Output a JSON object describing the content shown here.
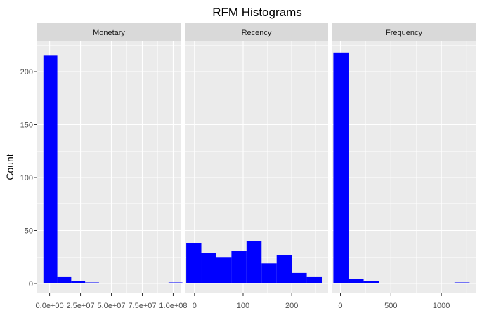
{
  "chart_data": {
    "type": "bar",
    "title": "RFM Histograms",
    "ylabel": "Count",
    "ylim": [
      0,
      225
    ],
    "y_ticks": [
      0,
      50,
      100,
      150,
      200
    ],
    "y_tick_labels": [
      "0",
      "50",
      "100",
      "150",
      "200"
    ],
    "grid": true,
    "legend": "none",
    "bar_color": "#0000ff",
    "panel_bg": "#ebebeb",
    "strip_bg": "#d9d9d9",
    "panels": [
      {
        "name": "Monetary",
        "xlim": [
          -10000000,
          106000000
        ],
        "x_ticks": [
          0,
          25000000,
          50000000,
          75000000,
          100000000
        ],
        "x_tick_labels": [
          "0.0e+00",
          "2.5e+07",
          "5.0e+07",
          "7.5e+07",
          "1.0e+08"
        ],
        "bins": [
          {
            "from": -5000000,
            "to": 6250000,
            "count": 215
          },
          {
            "from": 6250000,
            "to": 17500000,
            "count": 6
          },
          {
            "from": 17500000,
            "to": 28750000,
            "count": 2
          },
          {
            "from": 28750000,
            "to": 40000000,
            "count": 1
          },
          {
            "from": 40000000,
            "to": 51250000,
            "count": 0
          },
          {
            "from": 51250000,
            "to": 62500000,
            "count": 0
          },
          {
            "from": 62500000,
            "to": 73750000,
            "count": 0
          },
          {
            "from": 73750000,
            "to": 85000000,
            "count": 0
          },
          {
            "from": 85000000,
            "to": 96250000,
            "count": 0
          },
          {
            "from": 96250000,
            "to": 107500000,
            "count": 1
          }
        ]
      },
      {
        "name": "Recency",
        "xlim": [
          -20,
          275
        ],
        "x_ticks": [
          0,
          100,
          200
        ],
        "x_tick_labels": [
          "0",
          "100",
          "200"
        ],
        "bins": [
          {
            "from": -17,
            "to": 14,
            "count": 38
          },
          {
            "from": 14,
            "to": 45,
            "count": 29
          },
          {
            "from": 45,
            "to": 76,
            "count": 25
          },
          {
            "from": 76,
            "to": 107,
            "count": 31
          },
          {
            "from": 107,
            "to": 138,
            "count": 40
          },
          {
            "from": 138,
            "to": 169,
            "count": 19
          },
          {
            "from": 169,
            "to": 200,
            "count": 27
          },
          {
            "from": 200,
            "to": 231,
            "count": 10
          },
          {
            "from": 231,
            "to": 262,
            "count": 6
          }
        ]
      },
      {
        "name": "Frequency",
        "xlim": [
          -80,
          1340
        ],
        "x_ticks": [
          0,
          500,
          1000
        ],
        "x_tick_labels": [
          "0",
          "500",
          "1000"
        ],
        "bins": [
          {
            "from": -70,
            "to": 80,
            "count": 218
          },
          {
            "from": 80,
            "to": 230,
            "count": 4
          },
          {
            "from": 230,
            "to": 380,
            "count": 2
          },
          {
            "from": 380,
            "to": 530,
            "count": 0
          },
          {
            "from": 530,
            "to": 680,
            "count": 0
          },
          {
            "from": 680,
            "to": 830,
            "count": 0
          },
          {
            "from": 830,
            "to": 980,
            "count": 0
          },
          {
            "from": 980,
            "to": 1130,
            "count": 0
          },
          {
            "from": 1130,
            "to": 1280,
            "count": 1
          }
        ]
      }
    ]
  }
}
